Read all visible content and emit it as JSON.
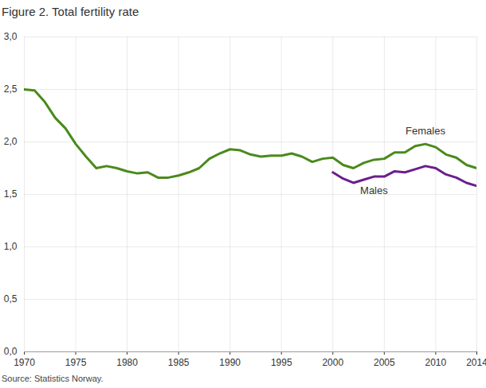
{
  "chart_data": {
    "type": "line",
    "title": "Figure 2. Total fertility rate",
    "caption": "Source: Statistics Norway.",
    "x": [
      1970,
      1971,
      1972,
      1973,
      1974,
      1975,
      1976,
      1977,
      1978,
      1979,
      1980,
      1981,
      1982,
      1983,
      1984,
      1985,
      1986,
      1987,
      1988,
      1989,
      1990,
      1991,
      1992,
      1993,
      1994,
      1995,
      1996,
      1997,
      1998,
      1999,
      2000,
      2001,
      2002,
      2003,
      2004,
      2005,
      2006,
      2007,
      2008,
      2009,
      2010,
      2011,
      2012,
      2013,
      2014
    ],
    "series": [
      {
        "name": "Females",
        "color": "#4a8a1c",
        "values": [
          2.5,
          2.49,
          2.38,
          2.23,
          2.13,
          1.98,
          1.86,
          1.75,
          1.77,
          1.75,
          1.72,
          1.7,
          1.71,
          1.66,
          1.66,
          1.68,
          1.71,
          1.75,
          1.84,
          1.89,
          1.93,
          1.92,
          1.88,
          1.86,
          1.87,
          1.87,
          1.89,
          1.86,
          1.81,
          1.84,
          1.85,
          1.78,
          1.75,
          1.8,
          1.83,
          1.84,
          1.9,
          1.9,
          1.96,
          1.98,
          1.95,
          1.88,
          1.85,
          1.78,
          1.75
        ]
      },
      {
        "name": "Males",
        "color": "#6a1f8c",
        "values": [
          null,
          null,
          null,
          null,
          null,
          null,
          null,
          null,
          null,
          null,
          null,
          null,
          null,
          null,
          null,
          null,
          null,
          null,
          null,
          null,
          null,
          null,
          null,
          null,
          null,
          null,
          null,
          null,
          null,
          null,
          1.71,
          1.65,
          1.61,
          1.64,
          1.67,
          1.67,
          1.72,
          1.71,
          1.74,
          1.77,
          1.75,
          1.69,
          1.66,
          1.61,
          1.58
        ]
      }
    ],
    "xlim": [
      1970,
      2014
    ],
    "xticks": [
      1970,
      1975,
      1980,
      1985,
      1990,
      1995,
      2000,
      2005,
      2010,
      2014
    ],
    "ylim": [
      0,
      3
    ],
    "yticks": [
      {
        "value": 0,
        "label": "0,0"
      },
      {
        "value": 0.5,
        "label": "0,5"
      },
      {
        "value": 1,
        "label": "1,0"
      },
      {
        "value": 1.5,
        "label": "1,5"
      },
      {
        "value": 2,
        "label": "2,0"
      },
      {
        "value": 2.5,
        "label": "2,5"
      },
      {
        "value": 3,
        "label": "3,0"
      }
    ],
    "grid": true
  }
}
